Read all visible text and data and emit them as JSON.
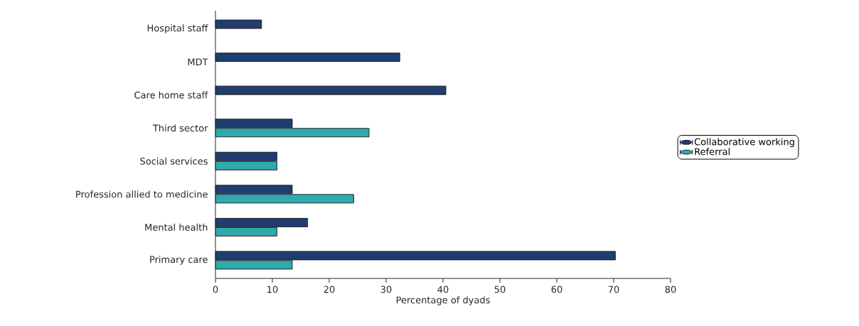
{
  "chart_data": {
    "type": "bar",
    "orientation": "horizontal",
    "xlabel": "Percentage of dyads",
    "categories": [
      "Hospital staff",
      "MDT",
      "Care home staff",
      "Third sector",
      "Social services",
      "Profession allied to medicine",
      "Mental health",
      "Primary care"
    ],
    "series": [
      {
        "name": "Collaborative working",
        "color": "#1f3d6e",
        "values": [
          8.1,
          32.4,
          40.5,
          13.5,
          10.8,
          13.5,
          16.2,
          70.3
        ]
      },
      {
        "name": "Referral",
        "color": "#2eaaad",
        "values": [
          null,
          null,
          null,
          27.0,
          10.8,
          24.3,
          10.8,
          13.5
        ]
      }
    ],
    "xlim": [
      0,
      80
    ],
    "xticks": [
      0,
      10,
      20,
      30,
      40,
      50,
      60,
      70,
      80
    ],
    "grid": false,
    "legend": "right"
  }
}
